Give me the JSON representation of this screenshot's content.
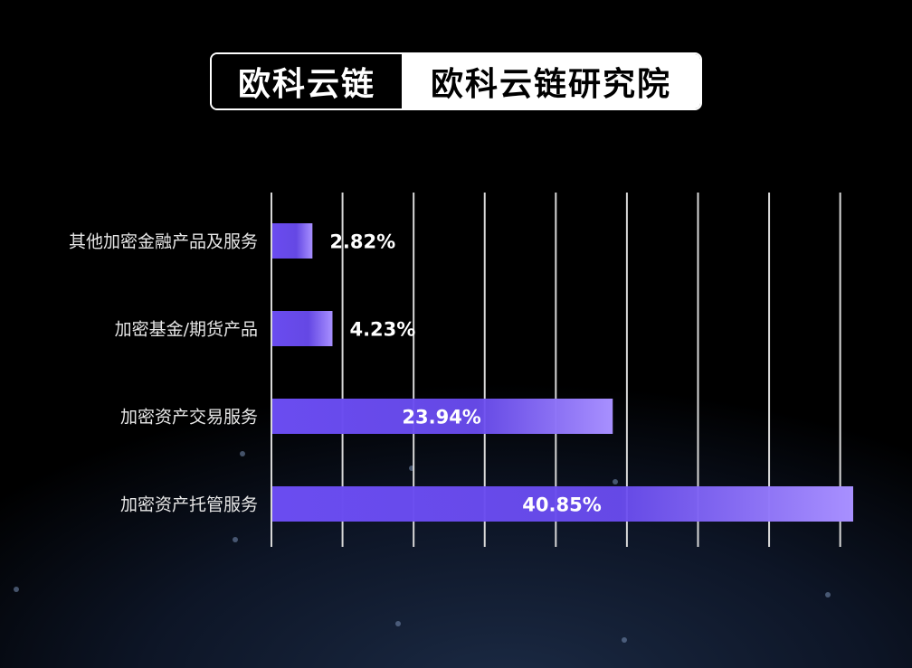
{
  "header": {
    "brand": "欧科云链",
    "subtitle": "欧科云链研究院"
  },
  "chart_data": {
    "type": "bar",
    "orientation": "horizontal",
    "categories": [
      "其他加密金融产品及服务",
      "加密基金/期货产品",
      "加密资产交易服务",
      "加密资产托管服务"
    ],
    "values": [
      2.82,
      4.23,
      23.94,
      40.85
    ],
    "data_labels": [
      "2.82%",
      "4.23%",
      "23.94%",
      "40.85%"
    ],
    "xlim": [
      0,
      40
    ],
    "grid": true,
    "grid_step": 5,
    "colors": {
      "bar_start": "#6a4cf0",
      "bar_end": "#a890ff",
      "grid": "#d8d8d8",
      "text": "#ffffff",
      "label": "#e6e6e6"
    }
  }
}
